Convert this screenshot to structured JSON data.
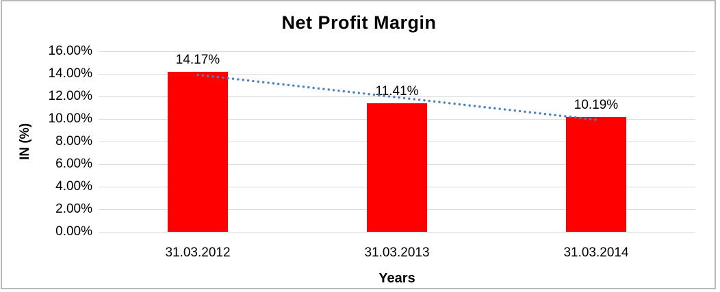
{
  "chart_data": {
    "type": "bar",
    "title": "Net Profit Margin",
    "xlabel": "Years",
    "ylabel": "IN (%)",
    "categories": [
      "31.03.2012",
      "31.03.2013",
      "31.03.2014"
    ],
    "values": [
      14.17,
      11.41,
      10.19
    ],
    "value_labels": [
      "14.17%",
      "11.41%",
      "10.19%"
    ],
    "ylim": [
      0,
      16
    ],
    "ytick_step": 2,
    "ytick_labels": [
      "0.00%",
      "2.00%",
      "4.00%",
      "6.00%",
      "8.00%",
      "10.00%",
      "12.00%",
      "14.00%",
      "16.00%"
    ],
    "grid": true,
    "legend_position": "none",
    "bar_color": "#ff0000",
    "gridline_color": "#d9d9d9",
    "frame_color": "#b9b9b9",
    "text_color": "#000000",
    "trendline": {
      "type": "linear",
      "style": "dotted",
      "color": "#4f81bd"
    }
  }
}
